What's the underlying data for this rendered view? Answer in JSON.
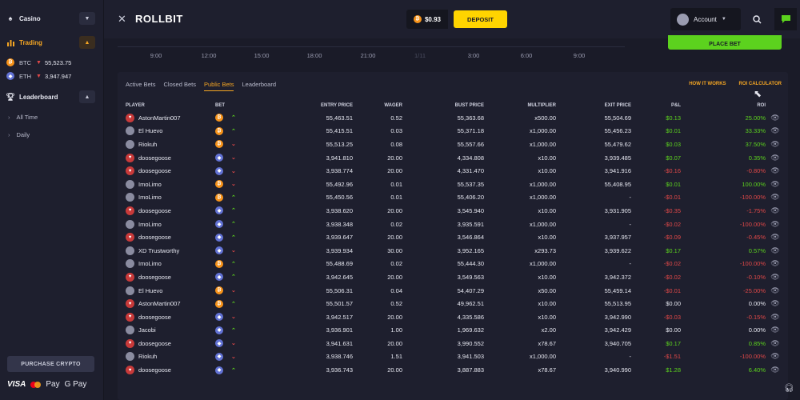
{
  "sidebar": {
    "casino_label": "Casino",
    "trading_label": "Trading",
    "tickers": [
      {
        "symbol": "BTC",
        "price": "55,523.75"
      },
      {
        "symbol": "ETH",
        "price": "3,947.947"
      }
    ],
    "leaderboard_label": "Leaderboard",
    "leaderboard_sub": [
      "All Time",
      "Daily"
    ],
    "purchase_label": "PURCHASE CRYPTO",
    "payments": [
      "VISA",
      "Pay",
      "G Pay"
    ]
  },
  "topbar": {
    "logo": "ROLLBIT",
    "balance": "$0.93",
    "deposit_label": "DEPOSIT",
    "account_label": "Account"
  },
  "chart": {
    "time_labels": [
      "9:00",
      "12:00",
      "15:00",
      "18:00",
      "21:00",
      "1/11",
      "3:00",
      "6:00",
      "9:00"
    ],
    "place_bet_label": "PLACE BET"
  },
  "tabs": [
    "Active Bets",
    "Closed Bets",
    "Public Bets",
    "Leaderboard"
  ],
  "active_tab": "Public Bets",
  "links": [
    "HOW IT WORKS",
    "ROI CALCULATOR"
  ],
  "columns": [
    "PLAYER",
    "BET",
    "ENTRY PRICE",
    "WAGER",
    "BUST PRICE",
    "MULTIPLIER",
    "EXIT PRICE",
    "P&L",
    "ROI"
  ],
  "colors": {
    "accent": "#f5a623",
    "deposit": "#ffd400",
    "positive": "#5cd21e",
    "negative": "#e04848"
  },
  "rows": [
    {
      "player": "AstonMartin007",
      "avatar": "rb",
      "coin": "btc",
      "dir": "up",
      "entry": "55,463.51",
      "wager": "0.52",
      "bust": "55,363.68",
      "mult": "x500.00",
      "exit": "55,504.69",
      "pnl": "$0.13",
      "roi": "25.00%",
      "sign": "pos"
    },
    {
      "player": "El Huevo",
      "avatar": "user",
      "coin": "btc",
      "dir": "up",
      "entry": "55,415.51",
      "wager": "0.03",
      "bust": "55,371.18",
      "mult": "x1,000.00",
      "exit": "55,456.23",
      "pnl": "$0.01",
      "roi": "33.33%",
      "sign": "pos"
    },
    {
      "player": "Riokuh",
      "avatar": "user",
      "coin": "btc",
      "dir": "down",
      "entry": "55,513.25",
      "wager": "0.08",
      "bust": "55,557.66",
      "mult": "x1,000.00",
      "exit": "55,479.62",
      "pnl": "$0.03",
      "roi": "37.50%",
      "sign": "pos"
    },
    {
      "player": "doosegoose",
      "avatar": "rb",
      "coin": "eth",
      "dir": "down",
      "entry": "3,941.810",
      "wager": "20.00",
      "bust": "4,334.808",
      "mult": "x10.00",
      "exit": "3,939.485",
      "pnl": "$0.07",
      "roi": "0.35%",
      "sign": "pos"
    },
    {
      "player": "doosegoose",
      "avatar": "rb",
      "coin": "eth",
      "dir": "down",
      "entry": "3,938.774",
      "wager": "20.00",
      "bust": "4,331.470",
      "mult": "x10.00",
      "exit": "3,941.916",
      "pnl": "-$0.16",
      "roi": "-0.80%",
      "sign": "neg"
    },
    {
      "player": "ImoLimo",
      "avatar": "user",
      "coin": "btc",
      "dir": "down",
      "entry": "55,492.96",
      "wager": "0.01",
      "bust": "55,537.35",
      "mult": "x1,000.00",
      "exit": "55,408.95",
      "pnl": "$0.01",
      "roi": "100.00%",
      "sign": "pos"
    },
    {
      "player": "ImoLimo",
      "avatar": "user",
      "coin": "btc",
      "dir": "up",
      "entry": "55,450.56",
      "wager": "0.01",
      "bust": "55,406.20",
      "mult": "x1,000.00",
      "exit": "-",
      "pnl": "-$0.01",
      "roi": "-100.00%",
      "sign": "neg"
    },
    {
      "player": "doosegoose",
      "avatar": "rb",
      "coin": "eth",
      "dir": "up",
      "entry": "3,938.620",
      "wager": "20.00",
      "bust": "3,545.940",
      "mult": "x10.00",
      "exit": "3,931.905",
      "pnl": "-$0.35",
      "roi": "-1.75%",
      "sign": "neg"
    },
    {
      "player": "ImoLimo",
      "avatar": "user",
      "coin": "eth",
      "dir": "up",
      "entry": "3,938.348",
      "wager": "0.02",
      "bust": "3,935.591",
      "mult": "x1,000.00",
      "exit": "-",
      "pnl": "-$0.02",
      "roi": "-100.00%",
      "sign": "neg"
    },
    {
      "player": "doosegoose",
      "avatar": "rb",
      "coin": "eth",
      "dir": "up",
      "entry": "3,939.647",
      "wager": "20.00",
      "bust": "3,546.864",
      "mult": "x10.00",
      "exit": "3,937.957",
      "pnl": "-$0.09",
      "roi": "-0.45%",
      "sign": "neg"
    },
    {
      "player": "XD Trustworthy",
      "avatar": "user",
      "coin": "eth",
      "dir": "down",
      "entry": "3,939.934",
      "wager": "30.00",
      "bust": "3,952.165",
      "mult": "x293.73",
      "exit": "3,939.622",
      "pnl": "$0.17",
      "roi": "0.57%",
      "sign": "pos"
    },
    {
      "player": "ImoLimo",
      "avatar": "user",
      "coin": "btc",
      "dir": "up",
      "entry": "55,488.69",
      "wager": "0.02",
      "bust": "55,444.30",
      "mult": "x1,000.00",
      "exit": "-",
      "pnl": "-$0.02",
      "roi": "-100.00%",
      "sign": "neg"
    },
    {
      "player": "doosegoose",
      "avatar": "rb",
      "coin": "eth",
      "dir": "up",
      "entry": "3,942.645",
      "wager": "20.00",
      "bust": "3,549.563",
      "mult": "x10.00",
      "exit": "3,942.372",
      "pnl": "-$0.02",
      "roi": "-0.10%",
      "sign": "neg"
    },
    {
      "player": "El Huevo",
      "avatar": "user",
      "coin": "btc",
      "dir": "down",
      "entry": "55,506.31",
      "wager": "0.04",
      "bust": "54,407.29",
      "mult": "x50.00",
      "exit": "55,459.14",
      "pnl": "-$0.01",
      "roi": "-25.00%",
      "sign": "neg"
    },
    {
      "player": "AstonMartin007",
      "avatar": "rb",
      "coin": "btc",
      "dir": "up",
      "entry": "55,501.57",
      "wager": "0.52",
      "bust": "49,962.51",
      "mult": "x10.00",
      "exit": "55,513.95",
      "pnl": "$0.00",
      "roi": "0.00%",
      "sign": "zero"
    },
    {
      "player": "doosegoose",
      "avatar": "rb",
      "coin": "eth",
      "dir": "down",
      "entry": "3,942.517",
      "wager": "20.00",
      "bust": "4,335.586",
      "mult": "x10.00",
      "exit": "3,942.990",
      "pnl": "-$0.03",
      "roi": "-0.15%",
      "sign": "neg"
    },
    {
      "player": "Jacobi",
      "avatar": "user",
      "coin": "eth",
      "dir": "up",
      "entry": "3,936.901",
      "wager": "1.00",
      "bust": "1,969.632",
      "mult": "x2.00",
      "exit": "3,942.429",
      "pnl": "$0.00",
      "roi": "0.00%",
      "sign": "zero"
    },
    {
      "player": "doosegoose",
      "avatar": "rb",
      "coin": "eth",
      "dir": "down",
      "entry": "3,941.631",
      "wager": "20.00",
      "bust": "3,990.552",
      "mult": "x78.67",
      "exit": "3,940.705",
      "pnl": "$0.17",
      "roi": "0.85%",
      "sign": "pos"
    },
    {
      "player": "Riokuh",
      "avatar": "user",
      "coin": "eth",
      "dir": "down",
      "entry": "3,938.746",
      "wager": "1.51",
      "bust": "3,941.503",
      "mult": "x1,000.00",
      "exit": "-",
      "pnl": "-$1.51",
      "roi": "-100.00%",
      "sign": "neg"
    },
    {
      "player": "doosegoose",
      "avatar": "rb",
      "coin": "eth",
      "dir": "up",
      "entry": "3,936.743",
      "wager": "20.00",
      "bust": "3,887.883",
      "mult": "x78.67",
      "exit": "3,940.990",
      "pnl": "$1.28",
      "roi": "6.40%",
      "sign": "pos"
    }
  ]
}
